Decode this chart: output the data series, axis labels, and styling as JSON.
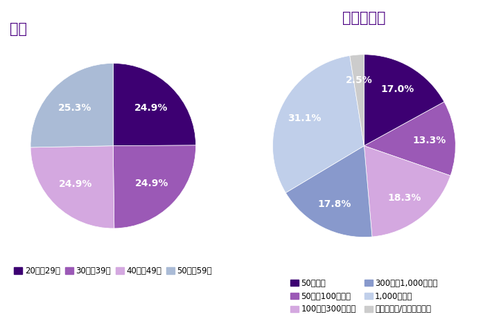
{
  "age_title": "年齢",
  "age_labels": [
    "20歳〜29歳",
    "30歳〜39歳",
    "40歳〜49歳",
    "50歳〜59歳"
  ],
  "age_values": [
    24.9,
    24.9,
    24.9,
    25.3
  ],
  "age_colors": [
    "#3D0072",
    "#9B59B6",
    "#D4A8E0",
    "#AABBD6"
  ],
  "age_startangle": 90,
  "emp_title": "従業員規模",
  "emp_labels": [
    "50人未満",
    "50人〜100人未満",
    "100人〜300人未満",
    "300人〜1,000人未満",
    "1,000人以上",
    "わからない/答えたくない"
  ],
  "emp_values": [
    17.0,
    13.3,
    18.3,
    17.8,
    31.1,
    2.5
  ],
  "emp_colors": [
    "#3D0072",
    "#9B59B6",
    "#D4A8E0",
    "#8899CC",
    "#C0CFEA",
    "#CCCCCC"
  ],
  "emp_startangle": 90,
  "background_color": "#FFFFFF",
  "title_color": "#4B0082",
  "title_fontsize": 15,
  "pct_fontsize": 10,
  "legend_fontsize": 8.5
}
